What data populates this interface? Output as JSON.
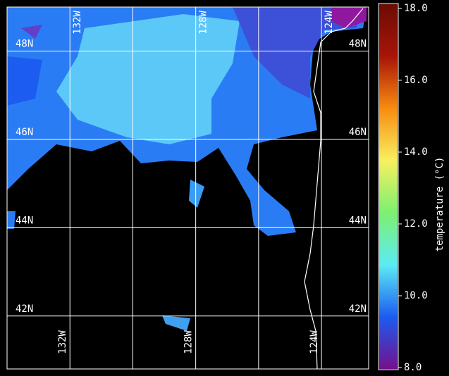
{
  "map": {
    "lonlim": [
      134.0,
      122.5
    ],
    "latlim": [
      49.0,
      40.8
    ],
    "lon_grid": [
      132,
      130,
      128,
      126,
      124
    ],
    "lat_grid": [
      48,
      46,
      44,
      42
    ],
    "lon_labels": [
      {
        "value": 132,
        "label": "132W"
      },
      {
        "value": 128,
        "label": "128W"
      },
      {
        "value": 124,
        "label": "124W"
      }
    ],
    "lat_labels": [
      {
        "value": 48,
        "label": "48N"
      },
      {
        "value": 46,
        "label": "46N"
      },
      {
        "value": 44,
        "label": "44N"
      },
      {
        "value": 42,
        "label": "42N"
      }
    ]
  },
  "colorbar": {
    "label": "temperature (°C)",
    "lim": [
      8,
      18
    ],
    "ticks": [
      {
        "value": 8,
        "label": "8.0"
      },
      {
        "value": 10,
        "label": "10.0"
      },
      {
        "value": 12,
        "label": "12.0"
      },
      {
        "value": 14,
        "label": "14.0"
      },
      {
        "value": 16,
        "label": "16.0"
      },
      {
        "value": 18,
        "label": "18.0"
      }
    ],
    "colors": [
      "#74108c",
      "#1c5cf0",
      "#5cecf4",
      "#7cf070",
      "#f8f060",
      "#f88c10",
      "#a81408",
      "#6c0c04"
    ]
  }
}
